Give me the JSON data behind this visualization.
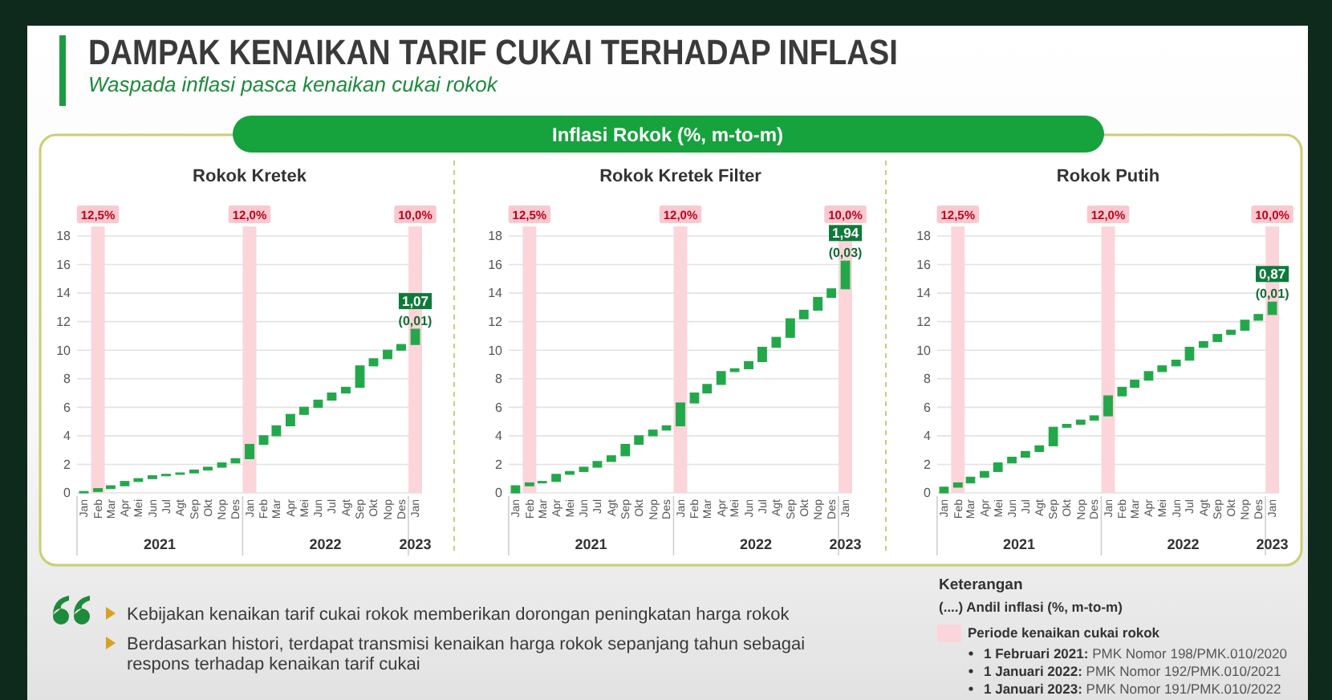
{
  "chart_data": [
    {
      "type": "other",
      "title": "DAMPAK KENAIKAN TARIF CUKAI TERHADAP INFLASI",
      "subtitle": "Waspada inflasi pasca kenaikan cukai rokok",
      "annotations": [
        "Inflasi Rokok (%, m-to-m)"
      ]
    },
    {
      "type": "bar",
      "title": "Rokok Kretek",
      "x": [
        "2021-01",
        "2021-02",
        "2021-03",
        "2021-04",
        "2021-05",
        "2021-06",
        "2021-07",
        "2021-08",
        "2021-09",
        "2021-10",
        "2021-11",
        "2021-12",
        "2022-01",
        "2022-02",
        "2022-03",
        "2022-04",
        "2022-05",
        "2022-06",
        "2022-07",
        "2022-08",
        "2022-09",
        "2022-10",
        "2022-11",
        "2022-12",
        "2023-01"
      ],
      "base": [
        0,
        0.1,
        0.3,
        0.5,
        0.8,
        1.0,
        1.2,
        1.3,
        1.4,
        1.6,
        1.8,
        2.1,
        2.4,
        3.4,
        4.0,
        4.7,
        5.5,
        6.0,
        6.5,
        7.0,
        7.4,
        8.9,
        9.4,
        10.0,
        10.4
      ],
      "values": [
        0.1,
        0.2,
        0.2,
        0.3,
        0.2,
        0.2,
        0.1,
        0.1,
        0.2,
        0.2,
        0.3,
        0.3,
        1.0,
        0.6,
        0.7,
        0.8,
        0.5,
        0.5,
        0.5,
        0.4,
        1.5,
        0.5,
        0.6,
        0.4,
        1.07
      ],
      "color": "#22a84a",
      "value_labels": [
        null,
        null,
        null,
        null,
        null,
        null,
        null,
        null,
        null,
        null,
        null,
        null,
        null,
        null,
        null,
        null,
        null,
        null,
        null,
        null,
        null,
        null,
        null,
        null,
        "1,07"
      ],
      "xlim": [
        "2020-12-17",
        "2023-01-16"
      ],
      "xticks": [
        {
          "value": "2021-01",
          "label": "Jan"
        },
        {
          "value": "2021-02",
          "label": "Feb"
        },
        {
          "value": "2021-03",
          "label": "Mar"
        },
        {
          "value": "2021-04",
          "label": "Apr"
        },
        {
          "value": "2021-05",
          "label": "Mei"
        },
        {
          "value": "2021-06",
          "label": "Jun"
        },
        {
          "value": "2021-07",
          "label": "Jul"
        },
        {
          "value": "2021-08",
          "label": "Agt"
        },
        {
          "value": "2021-09",
          "label": "Sep"
        },
        {
          "value": "2021-10",
          "label": "Okt"
        },
        {
          "value": "2021-11",
          "label": "Nop"
        },
        {
          "value": "2021-12",
          "label": "Des"
        },
        {
          "value": "2022-01",
          "label": "Jan"
        },
        {
          "value": "2022-02",
          "label": "Feb"
        },
        {
          "value": "2022-03",
          "label": "Mar"
        },
        {
          "value": "2022-04",
          "label": "Apr"
        },
        {
          "value": "2022-05",
          "label": "Mei"
        },
        {
          "value": "2022-06",
          "label": "Jun"
        },
        {
          "value": "2022-07",
          "label": "Jul"
        },
        {
          "value": "2022-08",
          "label": "Agt"
        },
        {
          "value": "2022-09",
          "label": "Sep"
        },
        {
          "value": "2022-10",
          "label": "Okt"
        },
        {
          "value": "2022-11",
          "label": "Nop"
        },
        {
          "value": "2022-12",
          "label": "Des"
        },
        {
          "value": "2023-01",
          "label": "Jan"
        }
      ],
      "ylim": [
        0,
        18
      ],
      "yticks": [
        0,
        2,
        4,
        6,
        8,
        10,
        12,
        14,
        16,
        18
      ],
      "grid": "y",
      "bands": [
        {
          "axis": "x",
          "from": "2021-01-17",
          "to": "2021-02-16",
          "label": "12,5%",
          "color": "#fbd5da"
        },
        {
          "axis": "x",
          "from": "2021-12-17",
          "to": "2022-01-16",
          "label": "12,0%",
          "color": "#fbd5da"
        },
        {
          "axis": "x",
          "from": "2022-12-17",
          "to": "2023-01-16",
          "label": "10,0%",
          "color": "#fbd5da"
        }
      ],
      "annotations": [
        "2021",
        "2022",
        "2023",
        "(0,01)"
      ]
    },
    {
      "type": "bar",
      "title": "Rokok Kretek Filter",
      "x": [
        "2021-01",
        "2021-02",
        "2021-03",
        "2021-04",
        "2021-05",
        "2021-06",
        "2021-07",
        "2021-08",
        "2021-09",
        "2021-10",
        "2021-11",
        "2021-12",
        "2022-01",
        "2022-02",
        "2022-03",
        "2022-04",
        "2022-05",
        "2022-06",
        "2022-07",
        "2022-08",
        "2022-09",
        "2022-10",
        "2022-11",
        "2022-12",
        "2023-01"
      ],
      "base": [
        0,
        0.5,
        0.7,
        0.8,
        1.3,
        1.5,
        1.8,
        2.2,
        2.6,
        3.4,
        4.0,
        4.4,
        4.7,
        6.3,
        7.0,
        7.6,
        8.5,
        8.7,
        9.2,
        10.2,
        10.9,
        12.2,
        12.8,
        13.7,
        14.3
      ],
      "values": [
        0.5,
        0.2,
        0.1,
        0.5,
        0.2,
        0.3,
        0.4,
        0.4,
        0.8,
        0.6,
        0.4,
        0.3,
        1.6,
        0.7,
        0.6,
        0.9,
        0.2,
        0.5,
        1.0,
        0.7,
        1.3,
        0.6,
        0.9,
        0.6,
        1.94
      ],
      "color": "#22a84a",
      "value_labels": [
        null,
        null,
        null,
        null,
        null,
        null,
        null,
        null,
        null,
        null,
        null,
        null,
        null,
        null,
        null,
        null,
        null,
        null,
        null,
        null,
        null,
        null,
        null,
        null,
        "1,94"
      ],
      "xlim": [
        "2020-12-17",
        "2023-01-16"
      ],
      "xticks": [
        {
          "value": "2021-01",
          "label": "Jan"
        },
        {
          "value": "2021-02",
          "label": "Feb"
        },
        {
          "value": "2021-03",
          "label": "Mar"
        },
        {
          "value": "2021-04",
          "label": "Apr"
        },
        {
          "value": "2021-05",
          "label": "Mei"
        },
        {
          "value": "2021-06",
          "label": "Jun"
        },
        {
          "value": "2021-07",
          "label": "Jul"
        },
        {
          "value": "2021-08",
          "label": "Agt"
        },
        {
          "value": "2021-09",
          "label": "Sep"
        },
        {
          "value": "2021-10",
          "label": "Okt"
        },
        {
          "value": "2021-11",
          "label": "Nop"
        },
        {
          "value": "2021-12",
          "label": "Des"
        },
        {
          "value": "2022-01",
          "label": "Jan"
        },
        {
          "value": "2022-02",
          "label": "Feb"
        },
        {
          "value": "2022-03",
          "label": "Mar"
        },
        {
          "value": "2022-04",
          "label": "Apr"
        },
        {
          "value": "2022-05",
          "label": "Mei"
        },
        {
          "value": "2022-06",
          "label": "Jun"
        },
        {
          "value": "2022-07",
          "label": "Jul"
        },
        {
          "value": "2022-08",
          "label": "Agt"
        },
        {
          "value": "2022-09",
          "label": "Sep"
        },
        {
          "value": "2022-10",
          "label": "Okt"
        },
        {
          "value": "2022-11",
          "label": "Nop"
        },
        {
          "value": "2022-12",
          "label": "Des"
        },
        {
          "value": "2023-01",
          "label": "Jan"
        }
      ],
      "ylim": [
        0,
        18
      ],
      "yticks": [
        0,
        2,
        4,
        6,
        8,
        10,
        12,
        14,
        16,
        18
      ],
      "grid": "y",
      "bands": [
        {
          "axis": "x",
          "from": "2021-01-17",
          "to": "2021-02-16",
          "label": "12,5%",
          "color": "#fbd5da"
        },
        {
          "axis": "x",
          "from": "2021-12-17",
          "to": "2022-01-16",
          "label": "12,0%",
          "color": "#fbd5da"
        },
        {
          "axis": "x",
          "from": "2022-12-17",
          "to": "2023-01-16",
          "label": "10,0%",
          "color": "#fbd5da"
        }
      ],
      "annotations": [
        "2021",
        "2022",
        "2023",
        "(0,03)"
      ]
    },
    {
      "type": "bar",
      "title": "Rokok Putih",
      "x": [
        "2021-01",
        "2021-02",
        "2021-03",
        "2021-04",
        "2021-05",
        "2021-06",
        "2021-07",
        "2021-08",
        "2021-09",
        "2021-10",
        "2021-11",
        "2021-12",
        "2022-01",
        "2022-02",
        "2022-03",
        "2022-04",
        "2022-05",
        "2022-06",
        "2022-07",
        "2022-08",
        "2022-09",
        "2022-10",
        "2022-11",
        "2022-12",
        "2023-01"
      ],
      "base": [
        0,
        0.4,
        0.7,
        1.1,
        1.5,
        2.1,
        2.5,
        2.9,
        3.3,
        4.6,
        4.8,
        5.1,
        5.4,
        6.8,
        7.4,
        7.9,
        8.5,
        8.9,
        9.3,
        10.2,
        10.6,
        11.1,
        11.4,
        12.1,
        12.5
      ],
      "values": [
        0.4,
        0.3,
        0.4,
        0.4,
        0.6,
        0.4,
        0.4,
        0.4,
        1.3,
        0.2,
        0.3,
        0.3,
        1.4,
        0.6,
        0.5,
        0.6,
        0.4,
        0.4,
        0.9,
        0.4,
        0.5,
        0.3,
        0.7,
        0.4,
        0.87
      ],
      "color": "#22a84a",
      "value_labels": [
        null,
        null,
        null,
        null,
        null,
        null,
        null,
        null,
        null,
        null,
        null,
        null,
        null,
        null,
        null,
        null,
        null,
        null,
        null,
        null,
        null,
        null,
        null,
        null,
        "0,87"
      ],
      "xlim": [
        "2020-12-17",
        "2023-01-16"
      ],
      "xticks": [
        {
          "value": "2021-01",
          "label": "Jan"
        },
        {
          "value": "2021-02",
          "label": "Feb"
        },
        {
          "value": "2021-03",
          "label": "Mar"
        },
        {
          "value": "2021-04",
          "label": "Apr"
        },
        {
          "value": "2021-05",
          "label": "Mei"
        },
        {
          "value": "2021-06",
          "label": "Jun"
        },
        {
          "value": "2021-07",
          "label": "Jul"
        },
        {
          "value": "2021-08",
          "label": "Agt"
        },
        {
          "value": "2021-09",
          "label": "Sep"
        },
        {
          "value": "2021-10",
          "label": "Okt"
        },
        {
          "value": "2021-11",
          "label": "Nop"
        },
        {
          "value": "2021-12",
          "label": "Des"
        },
        {
          "value": "2022-01",
          "label": "Jan"
        },
        {
          "value": "2022-02",
          "label": "Feb"
        },
        {
          "value": "2022-03",
          "label": "Mar"
        },
        {
          "value": "2022-04",
          "label": "Apr"
        },
        {
          "value": "2022-05",
          "label": "Mei"
        },
        {
          "value": "2022-06",
          "label": "Jun"
        },
        {
          "value": "2022-07",
          "label": "Jul"
        },
        {
          "value": "2022-08",
          "label": "Agt"
        },
        {
          "value": "2022-09",
          "label": "Sep"
        },
        {
          "value": "2022-10",
          "label": "Okt"
        },
        {
          "value": "2022-11",
          "label": "Nop"
        },
        {
          "value": "2022-12",
          "label": "Des"
        },
        {
          "value": "2023-01",
          "label": "Jan"
        }
      ],
      "ylim": [
        0,
        18
      ],
      "yticks": [
        0,
        2,
        4,
        6,
        8,
        10,
        12,
        14,
        16,
        18
      ],
      "grid": "y",
      "bands": [
        {
          "axis": "x",
          "from": "2021-01-17",
          "to": "2021-02-16",
          "label": "12,5%",
          "color": "#fbd5da"
        },
        {
          "axis": "x",
          "from": "2021-12-17",
          "to": "2022-01-16",
          "label": "12,0%",
          "color": "#fbd5da"
        },
        {
          "axis": "x",
          "from": "2022-12-17",
          "to": "2023-01-16",
          "label": "10,0%",
          "color": "#fbd5da"
        }
      ],
      "annotations": [
        "2021",
        "2022",
        "2023",
        "(0,01)"
      ]
    },
    {
      "type": "other",
      "annotations": [
        "Kebijakan kenaikan tarif cukai rokok memberikan dorongan peningkatan harga rokok",
        "Berdasarkan histori, terdapat transmisi kenaikan harga rokok sepanjang tahun sebagai respons terhadap kenaikan tarif cukai"
      ]
    },
    {
      "type": "other",
      "title": "Keterangan",
      "annotations": [
        "(....) Andil inflasi (%, m-to-m)",
        "Periode kenaikan cukai rokok",
        "1 Februari 2021: PMK Nomor 198/PMK.010/2020",
        "1 Januari 2022: PMK Nomor 192/PMK.010/2021",
        "1 Januari 2023: PMK Nomor 191/PMK.010/2022"
      ]
    }
  ]
}
